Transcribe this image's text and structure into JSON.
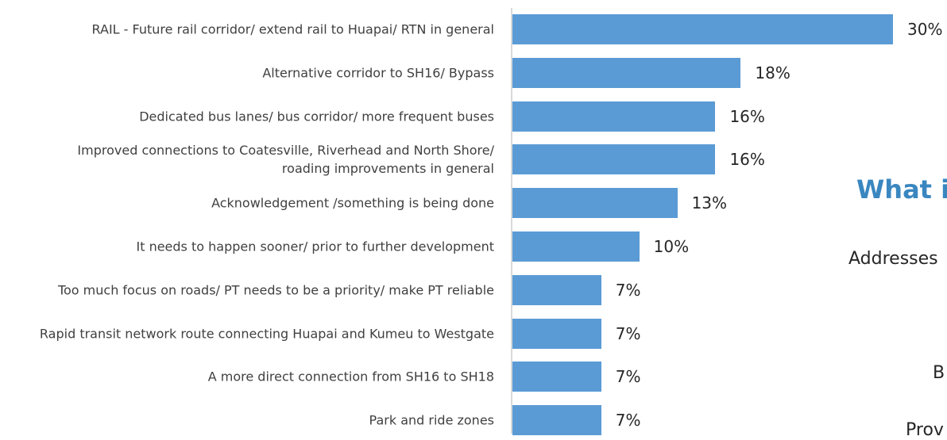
{
  "chart_data": {
    "type": "barh",
    "categories": [
      "RAIL - Future rail corridor/ extend rail to Huapai/ RTN in general",
      "Alternative corridor to SH16/ Bypass",
      "Dedicated bus lanes/ bus corridor/ more frequent buses",
      "Improved connections to Coatesville, Riverhead and North Shore/\nroading improvements in general",
      "Acknowledgement /something is being done",
      "It needs to happen sooner/ prior to further development",
      "Too much focus on roads/ PT needs to be a priority/ make PT reliable",
      "Rapid transit network route connecting Huapai and Kumeu to Westgate",
      "A more direct connection from SH16 to SH18",
      "Park and ride zones"
    ],
    "values": [
      30,
      18,
      16,
      16,
      13,
      10,
      7,
      7,
      7,
      7
    ],
    "value_labels": [
      "30%",
      "18%",
      "16%",
      "16%",
      "13%",
      "10%",
      "7%",
      "7%",
      "7%",
      "7%"
    ],
    "color": "#5b9bd5",
    "annotations": [
      "What i",
      "Addresses",
      "B",
      "Prov"
    ]
  }
}
